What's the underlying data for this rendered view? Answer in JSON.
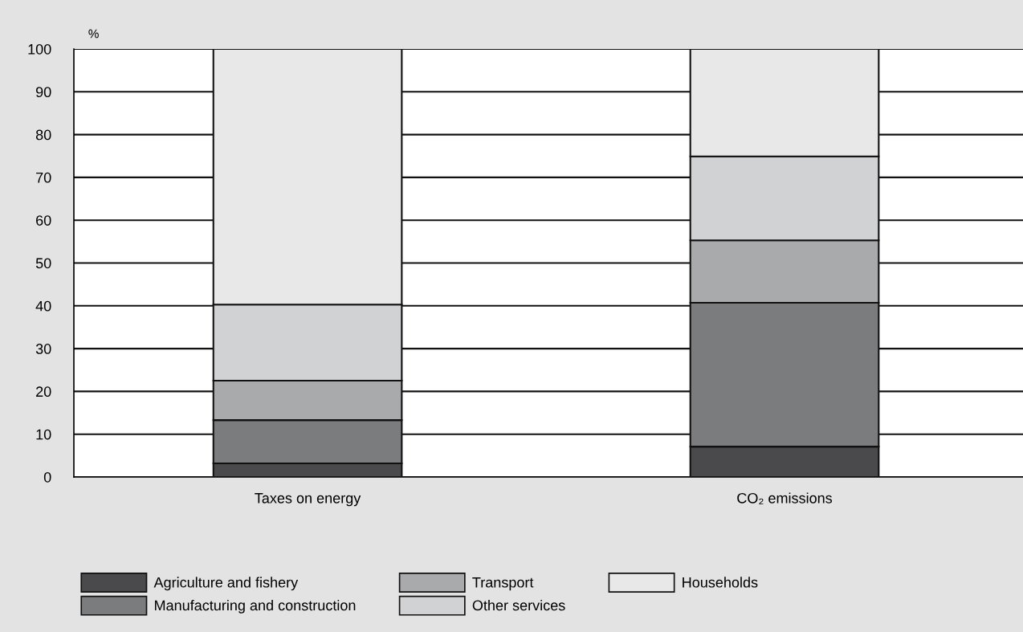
{
  "chart_data": {
    "type": "bar",
    "stacked": true,
    "ylabel": "%",
    "categories": [
      "Taxes on energy",
      "CO₂ emissions"
    ],
    "series": [
      {
        "name": "Agriculture and fishery",
        "color": "#4a4a4c",
        "values": [
          3.2,
          7.1
        ]
      },
      {
        "name": "Manufacturing and construction",
        "color": "#7b7c7e",
        "values": [
          10.1,
          33.6
        ]
      },
      {
        "name": "Transport",
        "color": "#a9aaac",
        "values": [
          9.2,
          14.6
        ]
      },
      {
        "name": "Other services",
        "color": "#d1d2d4",
        "values": [
          17.8,
          19.6
        ]
      },
      {
        "name": "Households",
        "color": "#e8e8e8",
        "values": [
          59.7,
          25.1
        ]
      }
    ],
    "ylim": [
      0,
      100
    ],
    "yticks": [
      0,
      10,
      20,
      30,
      40,
      50,
      60,
      70,
      80,
      90,
      100
    ],
    "grid": "y",
    "legend": "bottom"
  }
}
